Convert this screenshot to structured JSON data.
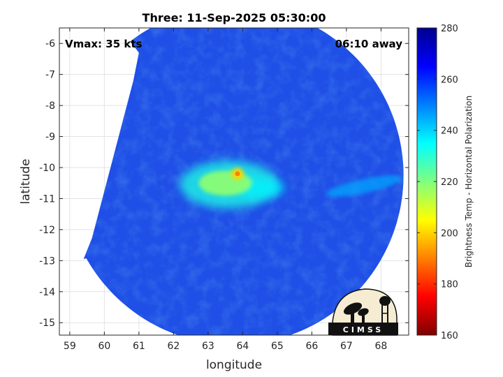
{
  "chart_data": {
    "type": "heatmap",
    "title": "Three: 11-Sep-2025 05:30:00",
    "xlabel": "longitude",
    "ylabel": "latitude",
    "xlim": [
      58.7,
      68.8
    ],
    "ylim": [
      -15.4,
      -5.5
    ],
    "xticks": [
      59,
      60,
      61,
      62,
      63,
      64,
      65,
      66,
      67,
      68
    ],
    "yticks": [
      -6,
      -7,
      -8,
      -9,
      -10,
      -11,
      -12,
      -13,
      -14,
      -15
    ],
    "grid": true,
    "annotations": {
      "vmax": "Vmax: 35 kts",
      "away": "06:10 away"
    },
    "colorbar": {
      "label": "Brightness Temp - Horizontal Polarization",
      "min": 160,
      "max": 280,
      "ticks": [
        280,
        260,
        240,
        220,
        200,
        180,
        160
      ],
      "colormap": [
        "#800000",
        "#ff0000",
        "#ffff00",
        "#00ffff",
        "#0000ff",
        "#00008f"
      ]
    },
    "swath": {
      "center_lon": 63.75,
      "center_lat": -10.25,
      "edge_west_lon_at_top": 61.0,
      "edge_west_lon_at_bottom": 59.4,
      "edge_west_lat_top": -6.3,
      "edge_west_lat_bottom": -12.95
    },
    "features": [
      {
        "name": "core",
        "lon": 63.85,
        "lat": -10.2,
        "temp": 190
      },
      {
        "name": "inner-ring",
        "lon": 63.5,
        "lat": -10.5,
        "temp": 218
      },
      {
        "name": "warm-band",
        "lon": 63.6,
        "lat": -10.55,
        "temp": 232
      },
      {
        "name": "east-band",
        "lon": 67.5,
        "lat": -10.6,
        "temp": 245
      }
    ],
    "logo": "CIMSS"
  }
}
